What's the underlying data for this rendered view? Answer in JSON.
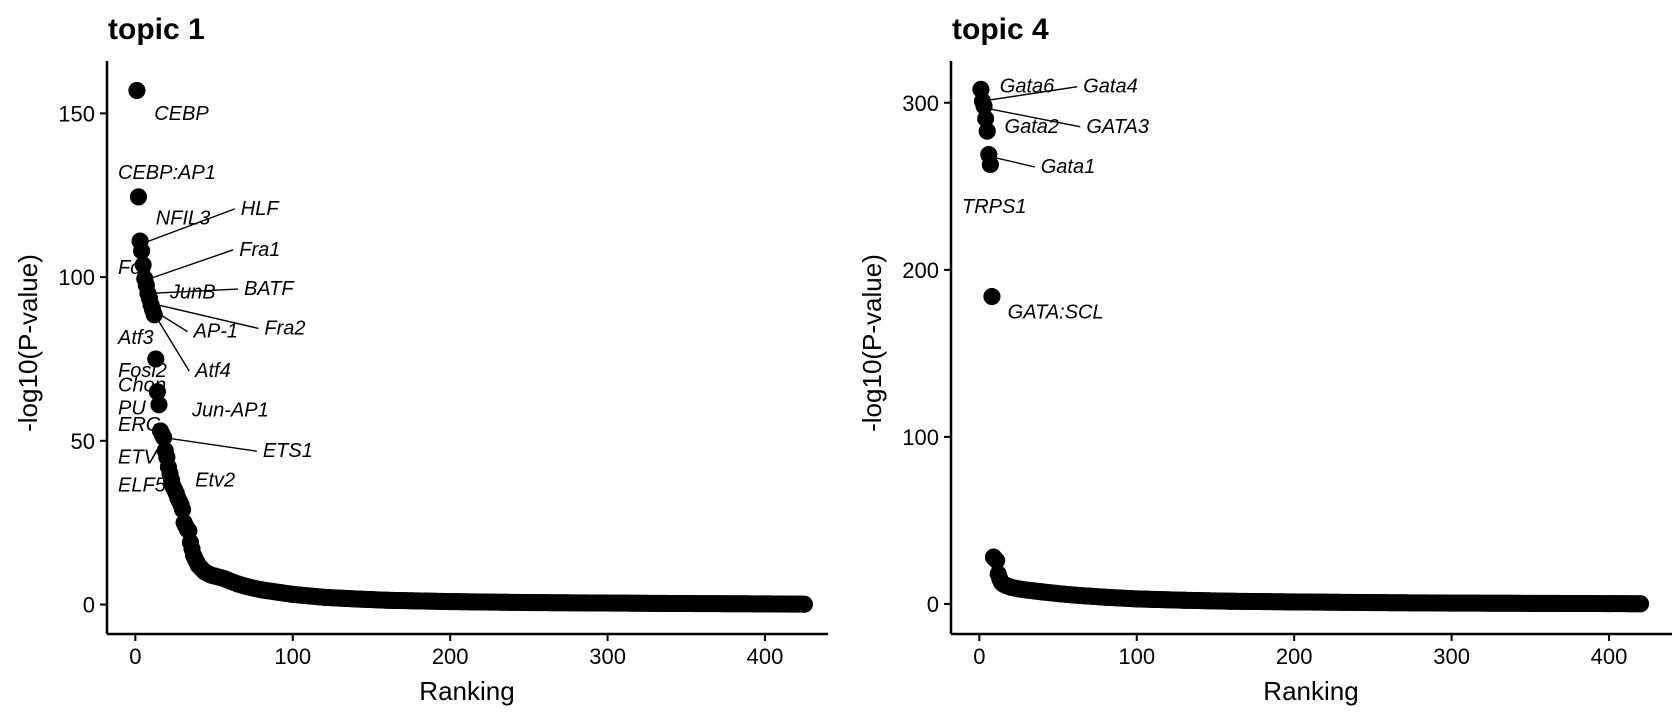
{
  "chart_data": [
    {
      "type": "scatter",
      "title": "topic 1",
      "xlabel": "Ranking",
      "ylabel": "-log10(P-value)",
      "xlim": [
        -18,
        440
      ],
      "ylim": [
        -9,
        166
      ],
      "xticks": [
        0,
        100,
        200,
        300,
        400
      ],
      "yticks": [
        0,
        50,
        100,
        150
      ],
      "n_points": 425,
      "points": [
        [
          1,
          157
        ],
        [
          2,
          124.5
        ],
        [
          3,
          111
        ],
        [
          4,
          108
        ],
        [
          6,
          99.5
        ],
        [
          7,
          97.5
        ],
        [
          8,
          95
        ],
        [
          9,
          93.5
        ],
        [
          10,
          91.5
        ],
        [
          11,
          90
        ],
        [
          12,
          88.5
        ],
        [
          13,
          75
        ],
        [
          14,
          65
        ],
        [
          15,
          61
        ],
        [
          16,
          53
        ],
        [
          17,
          52
        ],
        [
          18,
          51
        ],
        [
          19,
          47
        ],
        [
          20,
          45
        ],
        [
          21,
          42
        ],
        [
          22,
          40
        ],
        [
          23,
          38
        ],
        [
          24,
          36
        ],
        [
          25,
          35
        ],
        [
          26,
          34
        ],
        [
          27,
          32.5
        ],
        [
          28,
          31.5
        ],
        [
          29,
          30.5
        ],
        [
          30,
          29
        ],
        [
          31,
          25
        ],
        [
          32,
          24
        ],
        [
          33,
          23
        ],
        [
          34,
          22.5
        ],
        [
          35,
          19
        ],
        [
          36,
          17
        ],
        [
          37,
          15
        ],
        [
          38,
          14
        ],
        [
          39,
          13
        ],
        [
          40,
          12
        ],
        [
          42,
          11
        ],
        [
          44,
          10
        ],
        [
          46,
          9.5
        ],
        [
          48,
          9
        ],
        [
          52,
          8.5
        ],
        [
          56,
          8
        ],
        [
          60,
          7.2
        ],
        [
          65,
          6.3
        ],
        [
          70,
          5.6
        ],
        [
          75,
          5
        ],
        [
          80,
          4.5
        ],
        [
          90,
          3.8
        ],
        [
          100,
          3.1
        ],
        [
          120,
          2.2
        ],
        [
          140,
          1.7
        ],
        [
          160,
          1.3
        ],
        [
          200,
          0.9
        ],
        [
          250,
          0.6
        ],
        [
          300,
          0.45
        ],
        [
          350,
          0.3
        ],
        [
          400,
          0.2
        ],
        [
          425,
          0.1
        ]
      ],
      "labels": [
        {
          "text": "CEBP",
          "x": 12,
          "y": 148
        },
        {
          "text": "CEBP:AP1",
          "x": -11,
          "y": 130
        },
        {
          "text": "NFIL3",
          "x": 13,
          "y": 116
        },
        {
          "text": "HLF",
          "x": 67,
          "y": 119,
          "to": [
            3,
            110
          ]
        },
        {
          "text": "Fra1",
          "x": 66,
          "y": 106.5,
          "to": [
            6,
            99
          ]
        },
        {
          "text": "Fos",
          "x": -11,
          "y": 101
        },
        {
          "text": "JunB",
          "x": 22,
          "y": 93.5
        },
        {
          "text": "BATF",
          "x": 69,
          "y": 94.5,
          "to": [
            8,
            95
          ]
        },
        {
          "text": "AP-1",
          "x": 37,
          "y": 81.5,
          "to": [
            11,
            90
          ]
        },
        {
          "text": "Fra2",
          "x": 82,
          "y": 82.5,
          "to": [
            10,
            92
          ]
        },
        {
          "text": "Atf3",
          "x": -11,
          "y": 79.5
        },
        {
          "text": "Atf4",
          "x": 38,
          "y": 69.5,
          "to": [
            13,
            88
          ]
        },
        {
          "text": "Fosl2",
          "x": -11,
          "y": 69.5
        },
        {
          "text": "Chop",
          "x": -11,
          "y": 65
        },
        {
          "text": "PU",
          "x": -11,
          "y": 58
        },
        {
          "text": "Jun-AP1",
          "x": 36,
          "y": 57.5
        },
        {
          "text": "ERG",
          "x": -11,
          "y": 53
        },
        {
          "text": "ETS1",
          "x": 81,
          "y": 45,
          "to": [
            18,
            51
          ]
        },
        {
          "text": "ETV",
          "x": -11,
          "y": 43
        },
        {
          "text": "Etv2",
          "x": 38,
          "y": 36
        },
        {
          "text": "ELF5",
          "x": -11,
          "y": 34.5
        }
      ]
    },
    {
      "type": "scatter",
      "title": "topic 4",
      "xlabel": "Ranking",
      "ylabel": "-log10(P-value)",
      "xlim": [
        -18,
        440
      ],
      "ylim": [
        -18,
        325
      ],
      "xticks": [
        0,
        100,
        200,
        300,
        400
      ],
      "yticks": [
        0,
        100,
        200,
        300
      ],
      "n_points": 420,
      "points": [
        [
          1,
          308
        ],
        [
          2,
          301
        ],
        [
          3,
          298
        ],
        [
          5,
          283
        ],
        [
          6,
          269
        ],
        [
          7,
          263
        ],
        [
          8,
          184
        ],
        [
          9,
          28
        ],
        [
          10,
          27
        ],
        [
          11,
          26
        ],
        [
          12,
          18
        ],
        [
          13,
          15
        ],
        [
          14,
          13
        ],
        [
          15,
          12
        ],
        [
          17,
          11
        ],
        [
          20,
          10
        ],
        [
          25,
          9
        ],
        [
          30,
          8.3
        ],
        [
          40,
          7.2
        ],
        [
          50,
          6.2
        ],
        [
          60,
          5.3
        ],
        [
          80,
          4
        ],
        [
          100,
          3
        ],
        [
          130,
          2.2
        ],
        [
          160,
          1.6
        ],
        [
          200,
          1.2
        ],
        [
          250,
          0.8
        ],
        [
          300,
          0.5
        ],
        [
          350,
          0.35
        ],
        [
          400,
          0.2
        ],
        [
          420,
          0.1
        ]
      ],
      "labels": [
        {
          "text": "Gata6",
          "x": 13,
          "y": 306
        },
        {
          "text": "Gata4",
          "x": 66,
          "y": 306,
          "to": [
            2,
            301
          ]
        },
        {
          "text": "Gata2",
          "x": 16,
          "y": 282
        },
        {
          "text": "GATA3",
          "x": 68,
          "y": 282,
          "to": [
            3,
            297
          ]
        },
        {
          "text": "Gata1",
          "x": 39,
          "y": 258,
          "to": [
            6,
            268
          ]
        },
        {
          "text": "TRPS1",
          "x": -11,
          "y": 234
        },
        {
          "text": "GATA:SCL",
          "x": 18,
          "y": 171
        }
      ]
    }
  ]
}
